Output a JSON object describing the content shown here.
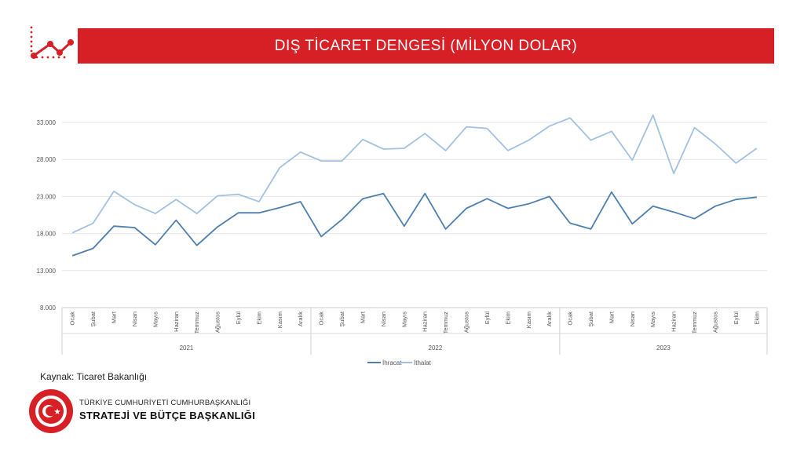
{
  "header": {
    "title": "DIŞ TİCARET DENGESİ (MİLYON DOLAR)",
    "logo_icon": "trend-chart-icon"
  },
  "footer": {
    "source": "Kaynak: Ticaret Bakanlığı",
    "org_line1": "TÜRKİYE CUMHURİYETİ CUMHURBAŞKANLIĞI",
    "org_line2": "STRATEJİ VE BÜTÇE BAŞKANLIĞI",
    "emblem_icon": "presidency-seal-icon"
  },
  "colors": {
    "banner": "#d71f26",
    "ihracat": "#4e7fae",
    "ithalat": "#a3c1e2",
    "grid": "#e6e6e6"
  },
  "chart_data": {
    "type": "line",
    "title": "",
    "xlabel": "",
    "ylabel": "",
    "ylim": [
      8000,
      33000
    ],
    "yticks": [
      "8.000",
      "13.000",
      "18.000",
      "23.000",
      "28.000",
      "33.000"
    ],
    "ytick_values": [
      8000,
      13000,
      18000,
      23000,
      28000,
      33000
    ],
    "grid": true,
    "legend": "bottom",
    "categories": [
      "Ocak",
      "Şubat",
      "Mart",
      "Nisan",
      "Mayıs",
      "Haziran",
      "Temmuz",
      "Ağustos",
      "Eylül",
      "Ekim",
      "Kasım",
      "Aralık",
      "Ocak",
      "Şubat",
      "Mart",
      "Nisan",
      "Mayıs",
      "Haziran",
      "Temmuz",
      "Ağustos",
      "Eylül",
      "Ekim",
      "Kasım",
      "Aralık",
      "Ocak",
      "Şubat",
      "Mart",
      "Nisan",
      "Mayıs",
      "Haziran",
      "Temmuz",
      "Ağustos",
      "Eylül",
      "Ekim"
    ],
    "groups": [
      {
        "label": "2021",
        "count": 12
      },
      {
        "label": "2022",
        "count": 12
      },
      {
        "label": "2023",
        "count": 10
      }
    ],
    "series": [
      {
        "name": "İhracat",
        "values": [
          15000,
          16000,
          19000,
          18800,
          16500,
          19800,
          16400,
          18900,
          20800,
          20800,
          21500,
          22300,
          17600,
          19900,
          22700,
          23400,
          19000,
          23400,
          18600,
          21400,
          22700,
          21400,
          22000,
          23000,
          19400,
          18600,
          23600,
          19300,
          21700,
          20900,
          20000,
          21700,
          22600,
          22900
        ]
      },
      {
        "name": "İthalat",
        "values": [
          18100,
          19400,
          23700,
          21900,
          20700,
          22600,
          20700,
          23100,
          23300,
          22300,
          26900,
          29000,
          27800,
          27800,
          30700,
          29400,
          29500,
          31500,
          29200,
          32400,
          32200,
          29200,
          30600,
          32500,
          33600,
          30600,
          31800,
          27900,
          34000,
          26100,
          32300,
          30100,
          27500,
          29500
        ]
      }
    ]
  }
}
